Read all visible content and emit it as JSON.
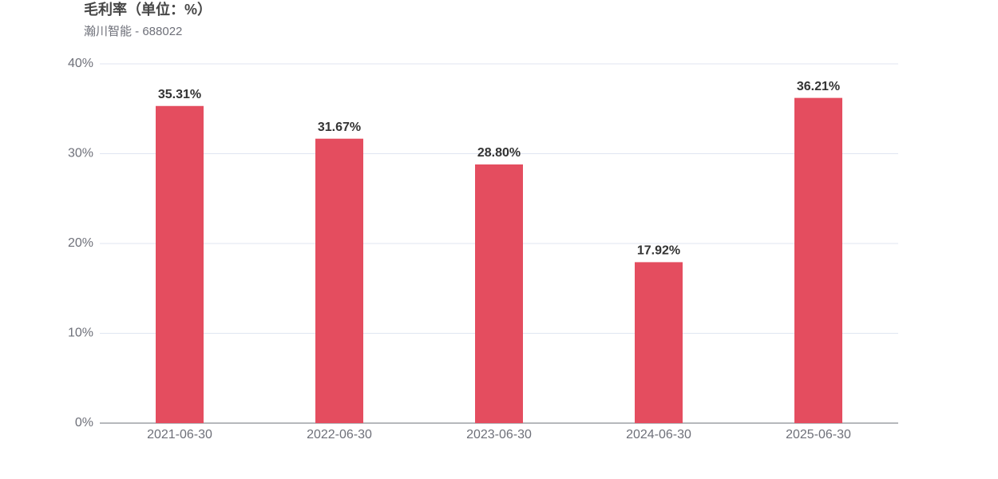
{
  "chart_data": {
    "type": "bar",
    "title": "毛利率（单位：%）",
    "subtitle": "瀚川智能 - 688022",
    "categories": [
      "2021-06-30",
      "2022-06-30",
      "2023-06-30",
      "2024-06-30",
      "2025-06-30"
    ],
    "values": [
      35.31,
      31.67,
      28.8,
      17.92,
      36.21
    ],
    "value_labels": [
      "35.31%",
      "31.67%",
      "28.80%",
      "17.92%",
      "36.21%"
    ],
    "color": "#e44d5f",
    "ylim": [
      0,
      40
    ],
    "yticks": [
      {
        "value": 0,
        "label": "0%"
      },
      {
        "value": 10,
        "label": "10%"
      },
      {
        "value": 20,
        "label": "20%"
      },
      {
        "value": 30,
        "label": "30%"
      },
      {
        "value": 40,
        "label": "40%"
      }
    ],
    "grid": true
  }
}
